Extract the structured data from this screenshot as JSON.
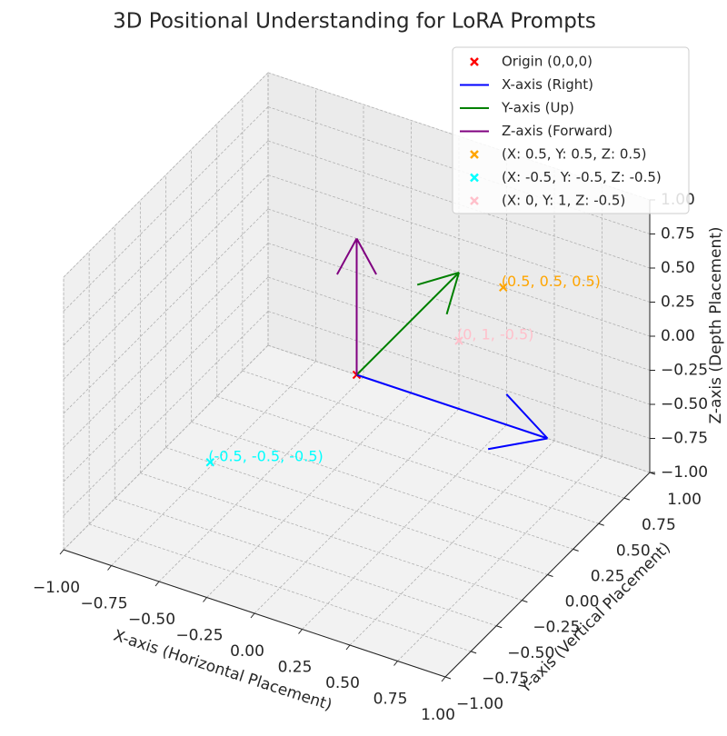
{
  "chart_data": {
    "type": "scatter3d",
    "title": "3D Positional Understanding for LoRA Prompts",
    "xlabel": "X-axis (Horizontal Placement)",
    "ylabel": "Y-axis (Vertical Placement)",
    "zlabel": "Z-axis (Depth Placement)",
    "xlim": [
      -1,
      1
    ],
    "ylim": [
      -1,
      1
    ],
    "zlim": [
      -1,
      1
    ],
    "xticks": [
      {
        "value": -1,
        "label": "−1.00"
      },
      {
        "value": -0.75,
        "label": "−0.75"
      },
      {
        "value": -0.5,
        "label": "−0.50"
      },
      {
        "value": -0.25,
        "label": "−0.25"
      },
      {
        "value": 0,
        "label": "0.00"
      },
      {
        "value": 0.25,
        "label": "0.25"
      },
      {
        "value": 0.5,
        "label": "0.50"
      },
      {
        "value": 0.75,
        "label": "0.75"
      },
      {
        "value": 1,
        "label": "1.00"
      }
    ],
    "yticks": [
      {
        "value": -1,
        "label": "−1.00"
      },
      {
        "value": -0.75,
        "label": "−0.75"
      },
      {
        "value": -0.5,
        "label": "−0.50"
      },
      {
        "value": -0.25,
        "label": "−0.25"
      },
      {
        "value": 0,
        "label": "0.00"
      },
      {
        "value": 0.25,
        "label": "0.25"
      },
      {
        "value": 0.5,
        "label": "0.50"
      },
      {
        "value": 0.75,
        "label": "0.75"
      },
      {
        "value": 1,
        "label": "1.00"
      }
    ],
    "zticks": [
      {
        "value": -1,
        "label": "−1.00"
      },
      {
        "value": -0.75,
        "label": "−0.75"
      },
      {
        "value": -0.5,
        "label": "−0.50"
      },
      {
        "value": -0.25,
        "label": "−0.25"
      },
      {
        "value": 0,
        "label": "0.00"
      },
      {
        "value": 0.25,
        "label": "0.25"
      },
      {
        "value": 0.5,
        "label": "0.50"
      },
      {
        "value": 0.75,
        "label": "0.75"
      },
      {
        "value": 1,
        "label": "1.00"
      }
    ],
    "grid": true,
    "legend": "upper right",
    "series": [
      {
        "name": "Origin (0,0,0)",
        "mode": "points",
        "color": "red",
        "x": [
          0
        ],
        "y": [
          0
        ],
        "z": [
          0
        ]
      },
      {
        "name": "X-axis (Right)",
        "mode": "arrow",
        "color": "blue",
        "x": [
          0,
          1
        ],
        "y": [
          0,
          0
        ],
        "z": [
          0,
          0
        ]
      },
      {
        "name": "Y-axis (Up)",
        "mode": "arrow",
        "color": "green",
        "x": [
          0,
          0
        ],
        "y": [
          0,
          1
        ],
        "z": [
          0,
          0
        ]
      },
      {
        "name": "Z-axis (Forward)",
        "mode": "arrow",
        "color": "purple",
        "x": [
          0,
          0
        ],
        "y": [
          0,
          0
        ],
        "z": [
          0,
          1
        ]
      },
      {
        "name": "(X: 0.5, Y: 0.5, Z: 0.5)",
        "mode": "points",
        "color": "orange",
        "x": [
          0.5
        ],
        "y": [
          0.5
        ],
        "z": [
          0.5
        ],
        "label": "(0.5, 0.5, 0.5)"
      },
      {
        "name": "(X: -0.5, Y: -0.5, Z: -0.5)",
        "mode": "points",
        "color": "cyan",
        "x": [
          -0.5
        ],
        "y": [
          -0.5
        ],
        "z": [
          -0.5
        ],
        "label": "(-0.5, -0.5, -0.5)"
      },
      {
        "name": "(X: 0, Y: 1, Z: -0.5)",
        "mode": "points",
        "color": "pink",
        "x": [
          0
        ],
        "y": [
          1
        ],
        "z": [
          -0.5
        ],
        "label": "(0, 1, -0.5)"
      }
    ]
  }
}
